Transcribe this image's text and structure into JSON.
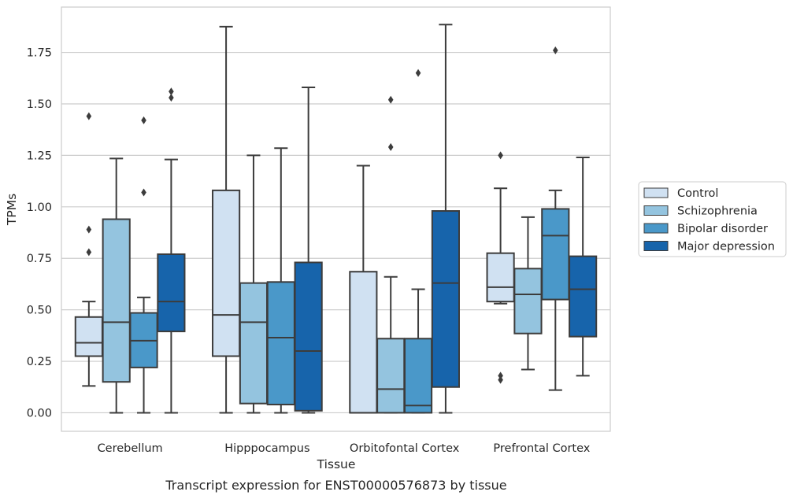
{
  "caption": "Transcript expression for ENST00000576873 by tissue",
  "chart_data": {
    "type": "box",
    "xlabel": "Tissue",
    "ylabel": "TPMs",
    "ylim": [
      -0.09,
      1.97
    ],
    "yticks": [
      0.0,
      0.25,
      0.5,
      0.75,
      1.0,
      1.25,
      1.5,
      1.75
    ],
    "ytick_labels": [
      "0.00",
      "0.25",
      "0.50",
      "0.75",
      "1.00",
      "1.25",
      "1.50",
      "1.75"
    ],
    "grid": "horizontal",
    "legend_position": "right",
    "categories": [
      "Cerebellum",
      "Hipppocampus",
      "Orbitofontal Cortex",
      "Prefrontal Cortex"
    ],
    "series": [
      {
        "name": "Control",
        "color": "#d0e1f2",
        "boxes": [
          {
            "whisker_low": 0.13,
            "q1": 0.275,
            "median": 0.34,
            "q3": 0.465,
            "whisker_high": 0.54,
            "outliers": [
              0.78,
              0.89,
              1.44
            ]
          },
          {
            "whisker_low": 0.0,
            "q1": 0.275,
            "median": 0.475,
            "q3": 1.08,
            "whisker_high": 1.875,
            "outliers": []
          },
          {
            "whisker_low": 0.0,
            "q1": 0.0,
            "median": 0.0,
            "q3": 0.685,
            "whisker_high": 1.2,
            "outliers": []
          },
          {
            "whisker_low": 0.53,
            "q1": 0.54,
            "median": 0.61,
            "q3": 0.775,
            "whisker_high": 1.09,
            "outliers": [
              0.16,
              0.18,
              1.25
            ]
          }
        ]
      },
      {
        "name": "Schizophrenia",
        "color": "#94c4df",
        "boxes": [
          {
            "whisker_low": 0.0,
            "q1": 0.15,
            "median": 0.44,
            "q3": 0.94,
            "whisker_high": 1.235,
            "outliers": []
          },
          {
            "whisker_low": 0.0,
            "q1": 0.045,
            "median": 0.44,
            "q3": 0.63,
            "whisker_high": 1.25,
            "outliers": []
          },
          {
            "whisker_low": 0.0,
            "q1": 0.0,
            "median": 0.115,
            "q3": 0.36,
            "whisker_high": 0.66,
            "outliers": [
              1.29,
              1.52
            ]
          },
          {
            "whisker_low": 0.21,
            "q1": 0.385,
            "median": 0.575,
            "q3": 0.7,
            "whisker_high": 0.95,
            "outliers": []
          }
        ]
      },
      {
        "name": "Bipolar disorder",
        "color": "#4a98c9",
        "boxes": [
          {
            "whisker_low": 0.0,
            "q1": 0.22,
            "median": 0.35,
            "q3": 0.485,
            "whisker_high": 0.56,
            "outliers": [
              1.07,
              1.42
            ]
          },
          {
            "whisker_low": 0.0,
            "q1": 0.04,
            "median": 0.365,
            "q3": 0.635,
            "whisker_high": 1.285,
            "outliers": []
          },
          {
            "whisker_low": 0.0,
            "q1": 0.0,
            "median": 0.035,
            "q3": 0.36,
            "whisker_high": 0.6,
            "outliers": [
              1.65
            ]
          },
          {
            "whisker_low": 0.11,
            "q1": 0.55,
            "median": 0.86,
            "q3": 0.99,
            "whisker_high": 1.08,
            "outliers": [
              1.76
            ]
          }
        ]
      },
      {
        "name": "Major depression",
        "color": "#1764ab",
        "boxes": [
          {
            "whisker_low": 0.0,
            "q1": 0.395,
            "median": 0.54,
            "q3": 0.77,
            "whisker_high": 1.23,
            "outliers": [
              1.53,
              1.56
            ]
          },
          {
            "whisker_low": 0.0,
            "q1": 0.01,
            "median": 0.3,
            "q3": 0.73,
            "whisker_high": 1.58,
            "outliers": []
          },
          {
            "whisker_low": 0.0,
            "q1": 0.125,
            "median": 0.63,
            "q3": 0.98,
            "whisker_high": 1.885,
            "outliers": []
          },
          {
            "whisker_low": 0.18,
            "q1": 0.37,
            "median": 0.6,
            "q3": 0.76,
            "whisker_high": 1.24,
            "outliers": []
          }
        ]
      }
    ]
  }
}
